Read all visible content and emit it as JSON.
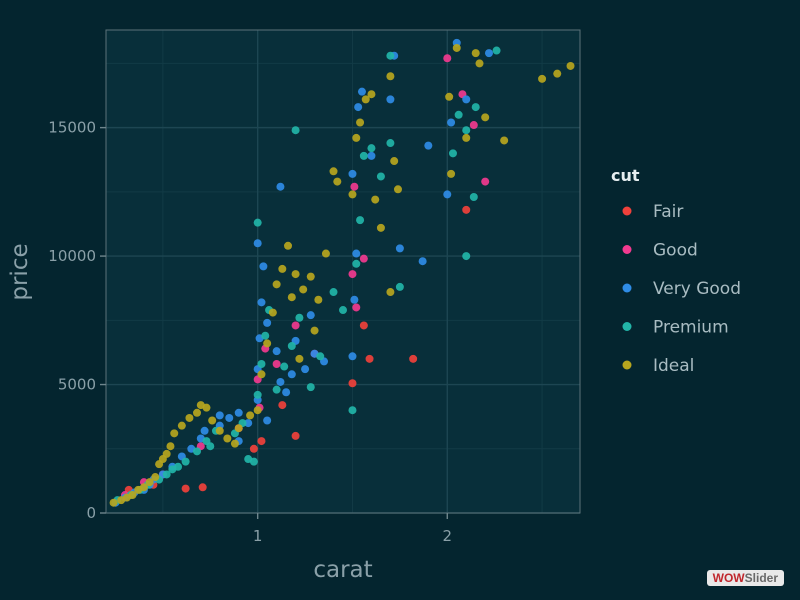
{
  "chart_data": {
    "type": "scatter",
    "xlabel": "carat",
    "ylabel": "price",
    "xlim": [
      0.2,
      2.7
    ],
    "ylim": [
      0,
      18800
    ],
    "x_ticks": [
      1,
      2
    ],
    "x_tick_labels": [
      "1",
      "2"
    ],
    "y_ticks": [
      0,
      5000,
      10000,
      15000
    ],
    "y_tick_labels": [
      "0",
      "5000",
      "10000",
      "15000"
    ],
    "grid": true,
    "legend": {
      "title": "cut",
      "position": "right"
    },
    "series": [
      {
        "name": "Fair",
        "color": "#f0413b",
        "points": [
          [
            0.32,
            900
          ],
          [
            0.45,
            1100
          ],
          [
            0.62,
            950
          ],
          [
            0.71,
            1000
          ],
          [
            0.98,
            2500
          ],
          [
            1.02,
            2800
          ],
          [
            1.13,
            4200
          ],
          [
            1.2,
            3000
          ],
          [
            1.5,
            5050
          ],
          [
            1.56,
            7300
          ],
          [
            1.59,
            6000
          ],
          [
            1.82,
            6000
          ],
          [
            2.1,
            11800
          ]
        ]
      },
      {
        "name": "Good",
        "color": "#f23a8f",
        "points": [
          [
            0.3,
            700
          ],
          [
            0.4,
            1200
          ],
          [
            0.5,
            1500
          ],
          [
            0.7,
            2600
          ],
          [
            0.9,
            3300
          ],
          [
            1.0,
            5200
          ],
          [
            1.01,
            4100
          ],
          [
            1.04,
            6400
          ],
          [
            1.1,
            5800
          ],
          [
            1.2,
            7300
          ],
          [
            1.3,
            6200
          ],
          [
            1.5,
            9300
          ],
          [
            1.51,
            12700
          ],
          [
            1.52,
            8000
          ],
          [
            1.56,
            9900
          ],
          [
            2.0,
            17700
          ],
          [
            2.08,
            16300
          ],
          [
            2.14,
            15100
          ],
          [
            2.2,
            12900
          ]
        ]
      },
      {
        "name": "Very Good",
        "color": "#2f8ce6",
        "points": [
          [
            0.25,
            400
          ],
          [
            0.3,
            600
          ],
          [
            0.35,
            800
          ],
          [
            0.4,
            900
          ],
          [
            0.45,
            1300
          ],
          [
            0.5,
            1500
          ],
          [
            0.55,
            1800
          ],
          [
            0.6,
            2200
          ],
          [
            0.65,
            2500
          ],
          [
            0.7,
            2900
          ],
          [
            0.72,
            3200
          ],
          [
            0.8,
            3400
          ],
          [
            0.85,
            3700
          ],
          [
            0.9,
            3900
          ],
          [
            0.95,
            3500
          ],
          [
            1.0,
            4400
          ],
          [
            1.0,
            5600
          ],
          [
            1.01,
            6800
          ],
          [
            1.02,
            8200
          ],
          [
            1.03,
            9600
          ],
          [
            1.0,
            10500
          ],
          [
            1.05,
            7400
          ],
          [
            1.1,
            6300
          ],
          [
            1.12,
            5100
          ],
          [
            1.15,
            4700
          ],
          [
            1.2,
            6700
          ],
          [
            1.25,
            5600
          ],
          [
            1.3,
            6200
          ],
          [
            1.35,
            5900
          ],
          [
            1.5,
            6100
          ],
          [
            1.51,
            8300
          ],
          [
            1.52,
            10100
          ],
          [
            1.5,
            13200
          ],
          [
            1.53,
            15800
          ],
          [
            1.55,
            16400
          ],
          [
            1.6,
            13900
          ],
          [
            1.7,
            16100
          ],
          [
            1.72,
            17800
          ],
          [
            1.75,
            10300
          ],
          [
            1.87,
            9800
          ],
          [
            1.9,
            14300
          ],
          [
            2.0,
            12400
          ],
          [
            2.02,
            15200
          ],
          [
            2.05,
            18300
          ],
          [
            2.1,
            16100
          ],
          [
            2.22,
            17900
          ],
          [
            1.12,
            12700
          ],
          [
            0.9,
            2800
          ],
          [
            0.8,
            3800
          ],
          [
            0.43,
            1100
          ],
          [
            1.05,
            3600
          ],
          [
            1.18,
            5400
          ],
          [
            1.28,
            7700
          ]
        ]
      },
      {
        "name": "Premium",
        "color": "#22b5a8",
        "points": [
          [
            0.26,
            500
          ],
          [
            0.33,
            700
          ],
          [
            0.38,
            900
          ],
          [
            0.42,
            1100
          ],
          [
            0.48,
            1300
          ],
          [
            0.52,
            1500
          ],
          [
            0.58,
            1800
          ],
          [
            0.62,
            2000
          ],
          [
            0.68,
            2400
          ],
          [
            0.73,
            2800
          ],
          [
            0.78,
            3200
          ],
          [
            0.88,
            3100
          ],
          [
            0.92,
            3500
          ],
          [
            0.95,
            2100
          ],
          [
            0.98,
            2000
          ],
          [
            1.0,
            4600
          ],
          [
            1.02,
            5800
          ],
          [
            1.04,
            6900
          ],
          [
            1.06,
            7900
          ],
          [
            1.0,
            11300
          ],
          [
            1.1,
            4800
          ],
          [
            1.14,
            5700
          ],
          [
            1.18,
            6500
          ],
          [
            1.22,
            7600
          ],
          [
            1.28,
            4900
          ],
          [
            1.33,
            6100
          ],
          [
            1.4,
            8600
          ],
          [
            1.45,
            7900
          ],
          [
            1.5,
            4000
          ],
          [
            1.52,
            9700
          ],
          [
            1.54,
            11400
          ],
          [
            1.56,
            13900
          ],
          [
            1.6,
            14200
          ],
          [
            1.65,
            13100
          ],
          [
            1.7,
            14400
          ],
          [
            1.7,
            17800
          ],
          [
            1.75,
            8800
          ],
          [
            2.03,
            14000
          ],
          [
            2.06,
            15500
          ],
          [
            2.1,
            14900
          ],
          [
            2.15,
            15800
          ],
          [
            2.1,
            10000
          ],
          [
            2.14,
            12300
          ],
          [
            2.26,
            18000
          ],
          [
            1.2,
            14900
          ],
          [
            0.55,
            1700
          ],
          [
            0.75,
            2600
          ]
        ]
      },
      {
        "name": "Ideal",
        "color": "#b7a61e",
        "points": [
          [
            0.24,
            400
          ],
          [
            0.28,
            500
          ],
          [
            0.31,
            600
          ],
          [
            0.34,
            700
          ],
          [
            0.37,
            900
          ],
          [
            0.4,
            1000
          ],
          [
            0.43,
            1200
          ],
          [
            0.46,
            1400
          ],
          [
            0.48,
            1900
          ],
          [
            0.5,
            2100
          ],
          [
            0.52,
            2300
          ],
          [
            0.54,
            2600
          ],
          [
            0.56,
            3100
          ],
          [
            0.6,
            3400
          ],
          [
            0.64,
            3700
          ],
          [
            0.68,
            3900
          ],
          [
            0.7,
            4200
          ],
          [
            0.73,
            4100
          ],
          [
            0.76,
            3600
          ],
          [
            0.8,
            3200
          ],
          [
            0.84,
            2900
          ],
          [
            0.9,
            3300
          ],
          [
            0.96,
            3800
          ],
          [
            1.0,
            4000
          ],
          [
            1.02,
            5400
          ],
          [
            1.05,
            6600
          ],
          [
            1.08,
            7800
          ],
          [
            1.1,
            8900
          ],
          [
            1.13,
            9500
          ],
          [
            1.16,
            10400
          ],
          [
            1.18,
            8400
          ],
          [
            1.2,
            9300
          ],
          [
            1.24,
            8700
          ],
          [
            1.28,
            9200
          ],
          [
            1.32,
            8300
          ],
          [
            1.36,
            10100
          ],
          [
            1.4,
            13300
          ],
          [
            1.42,
            12900
          ],
          [
            1.5,
            12400
          ],
          [
            1.52,
            14600
          ],
          [
            1.54,
            15200
          ],
          [
            1.57,
            16100
          ],
          [
            1.6,
            16300
          ],
          [
            1.62,
            12200
          ],
          [
            1.65,
            11100
          ],
          [
            1.7,
            8600
          ],
          [
            1.72,
            13700
          ],
          [
            1.74,
            12600
          ],
          [
            1.7,
            17000
          ],
          [
            2.01,
            16200
          ],
          [
            2.02,
            13200
          ],
          [
            2.05,
            18100
          ],
          [
            2.1,
            14600
          ],
          [
            2.15,
            17900
          ],
          [
            2.17,
            17500
          ],
          [
            2.2,
            15400
          ],
          [
            2.3,
            14500
          ],
          [
            2.5,
            16900
          ],
          [
            2.58,
            17100
          ],
          [
            2.65,
            17400
          ],
          [
            1.3,
            7100
          ],
          [
            1.22,
            6000
          ],
          [
            0.88,
            2700
          ]
        ]
      }
    ]
  },
  "watermark": {
    "part1": "WOW",
    "part2": "Slider"
  }
}
